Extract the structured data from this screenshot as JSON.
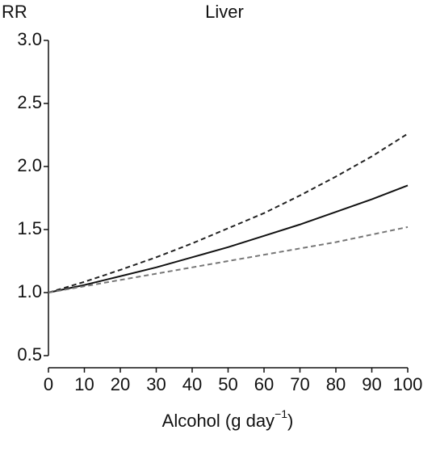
{
  "chart_data": {
    "type": "line",
    "title": "Liver",
    "y_label": "RR",
    "x_label": {
      "text": "Alcohol (g day",
      "superscript": "−1",
      "suffix": ")"
    },
    "x": [
      0,
      10,
      20,
      30,
      40,
      50,
      60,
      70,
      80,
      90,
      100
    ],
    "series": [
      {
        "color": "#111111",
        "dash": false,
        "values": [
          1,
          1.06,
          1.13,
          1.2,
          1.28,
          1.36,
          1.45,
          1.54,
          1.64,
          1.74,
          1.85
        ]
      },
      {
        "color": "#222222",
        "dash": true,
        "values": [
          1,
          1.085,
          1.18,
          1.28,
          1.39,
          1.51,
          1.63,
          1.77,
          1.92,
          2.08,
          2.26
        ]
      },
      {
        "color": "#777777",
        "dash": true,
        "values": [
          1,
          1.05,
          1.1,
          1.15,
          1.2,
          1.25,
          1.3,
          1.35,
          1.4,
          1.46,
          1.52
        ]
      }
    ],
    "xlim": [
      0,
      100
    ],
    "xticks": [
      0,
      10,
      20,
      30,
      40,
      50,
      60,
      70,
      80,
      90,
      100
    ],
    "ylim": [
      0.5,
      3.0
    ],
    "yticks": [
      {
        "value": 0.5,
        "label": "0.5"
      },
      {
        "value": 1.0,
        "label": "1.0"
      },
      {
        "value": 1.5,
        "label": "1.5"
      },
      {
        "value": 2.0,
        "label": "2.0"
      },
      {
        "value": 2.5,
        "label": "2.5"
      },
      {
        "value": 3.0,
        "label": "3.0"
      }
    ],
    "grid": false
  }
}
